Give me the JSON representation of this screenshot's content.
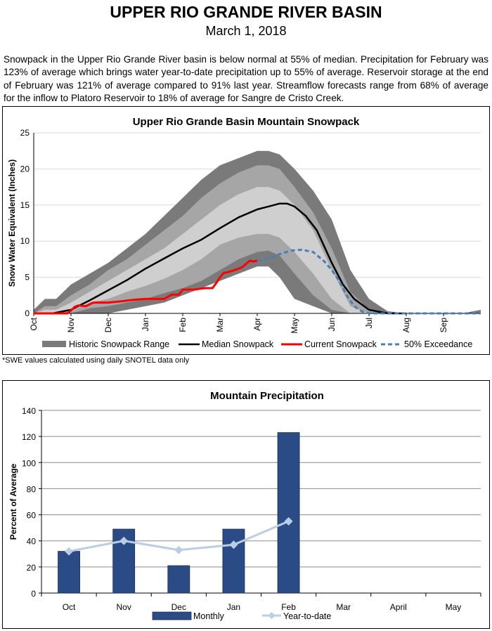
{
  "header": {
    "title": "UPPER RIO GRANDE RIVER BASIN",
    "date": "March 1, 2018",
    "summary": "Snowpack in the Upper Rio Grande River basin is below normal at 55% of median. Precipitation for February was 123% of average which brings water year-to-date precipitation up to 55% of average. Reservoir storage at the end of February was 121% of average compared to 91% last year. Streamflow forecasts range from 68% of average for the inflow to Platoro Reservoir to 18% of average for Sangre de Cristo Creek."
  },
  "footnote": "*SWE values calculated using daily SNOTEL data only",
  "colors": {
    "range_dark": "#7a7a7a",
    "range_mid": "#a6a6a6",
    "range_light": "#cfcfcf",
    "median": "#000000",
    "current": "#ff0000",
    "exceedance": "#4a7ebb",
    "bar": "#2a4b86",
    "ytd": "#b9cde5"
  },
  "chart_data": [
    {
      "type": "area",
      "title": "Upper Rio Grande Basin Mountain Snowpack",
      "ylabel": "Snow Water Equivalent (Inches)",
      "xlabel": "",
      "ylim": [
        0,
        25
      ],
      "yticks": [
        0,
        5,
        10,
        15,
        20,
        25
      ],
      "xticks": [
        "Oct",
        "Nov",
        "Dec",
        "Jan",
        "Feb",
        "Mar",
        "Apr",
        "May",
        "Jun",
        "Jul",
        "Aug",
        "Sep"
      ],
      "x_unit": "month index from Oct 1 (0 = Oct 1, 12 = Sep 30)",
      "legend": [
        "Historic Snowpack Range",
        "Median Snowpack",
        "Current Snowpack",
        "50% Exceedance"
      ],
      "legend_position": "bottom",
      "historic_range": {
        "x": [
          0,
          0.3,
          0.6,
          1,
          1.5,
          2,
          2.5,
          3,
          3.5,
          4,
          4.5,
          5,
          5.5,
          6,
          6.3,
          6.6,
          7,
          7.5,
          8,
          8.5,
          9,
          9.5,
          10,
          10.5,
          11,
          11.5,
          12
        ],
        "max": [
          0.5,
          2,
          2,
          4,
          5.5,
          7,
          9,
          11,
          13.5,
          16,
          18.5,
          20.5,
          21.5,
          22.5,
          22.5,
          22,
          20,
          17,
          13,
          6,
          2,
          0.3,
          0,
          0,
          0,
          0,
          0.5
        ],
        "p90": [
          0,
          1,
          1,
          2.5,
          4,
          6,
          7.5,
          9.5,
          11.5,
          13.5,
          16,
          18,
          19.5,
          20.5,
          20.5,
          20,
          17.5,
          14,
          9,
          3,
          0.5,
          0,
          0,
          0,
          0,
          0,
          0
        ],
        "p70": [
          0,
          0.5,
          0.5,
          1.5,
          3,
          4.5,
          6,
          7.5,
          9,
          11,
          13,
          15,
          16.5,
          17.5,
          17.5,
          17,
          15,
          11.5,
          6,
          1,
          0,
          0,
          0,
          0,
          0,
          0,
          0
        ],
        "p30": [
          0,
          0,
          0,
          0.3,
          1.5,
          2,
          3,
          3.8,
          4.8,
          6,
          7.5,
          9.5,
          10.5,
          11,
          11,
          10.5,
          8.5,
          5.5,
          2,
          0,
          0,
          0,
          0,
          0,
          0,
          0,
          0
        ],
        "p10": [
          0,
          0,
          0,
          0,
          0.7,
          1,
          1.5,
          2,
          2.8,
          3.5,
          4.5,
          6,
          7.5,
          8.5,
          8.7,
          8,
          5.5,
          2.5,
          0.5,
          0,
          0,
          0,
          0,
          0,
          0,
          0,
          0
        ],
        "min": [
          0,
          0,
          0,
          0,
          0,
          0,
          0.5,
          1,
          1.5,
          2.5,
          3.5,
          4.5,
          5.5,
          6.5,
          6.5,
          5,
          2,
          1,
          0,
          0,
          0,
          0,
          0,
          0,
          0,
          0,
          0
        ]
      },
      "series": [
        {
          "name": "Median Snowpack",
          "x": [
            0,
            0.5,
            1,
            1.5,
            2,
            2.5,
            3,
            3.5,
            4,
            4.5,
            5,
            5.5,
            6,
            6.3,
            6.6,
            6.8,
            7,
            7.3,
            7.6,
            8,
            8.3,
            8.6,
            9,
            9.5,
            10
          ],
          "values": [
            0,
            0,
            0.5,
            1.8,
            3.2,
            4.6,
            6.2,
            7.6,
            9,
            10.2,
            11.8,
            13.3,
            14.4,
            14.8,
            15.2,
            15.2,
            14.8,
            13.5,
            11.5,
            7,
            4,
            2,
            0.5,
            0,
            0
          ]
        },
        {
          "name": "Current Snowpack",
          "x": [
            0,
            0.9,
            1,
            1.1,
            1.2,
            1.4,
            1.6,
            2,
            2.4,
            2.7,
            3,
            3.2,
            3.5,
            3.7,
            3.9,
            4,
            4.3,
            4.6,
            4.8,
            4.9,
            5,
            5.1,
            5.2,
            5.4,
            5.6,
            5.8,
            5.9,
            6
          ],
          "values": [
            0,
            0,
            0.4,
            0.9,
            1.1,
            1,
            1.5,
            1.5,
            1.7,
            1.9,
            2,
            2,
            2,
            2.6,
            2.6,
            3.3,
            3.3,
            3.5,
            3.5,
            4.2,
            5,
            5.6,
            5.7,
            6,
            6.4,
            7.3,
            7.2,
            7.3
          ]
        },
        {
          "name": "50% Exceedance",
          "x": [
            6,
            6.3,
            6.6,
            6.9,
            7.2,
            7.5,
            7.8,
            8,
            8.2,
            8.4,
            8.6,
            8.8,
            9,
            9.5,
            10,
            11,
            12
          ],
          "values": [
            7.3,
            7.6,
            8.2,
            8.7,
            8.8,
            8.5,
            7.2,
            6,
            4.5,
            2.5,
            1,
            0.3,
            0,
            0,
            0,
            0,
            0
          ]
        }
      ]
    },
    {
      "type": "bar",
      "title": "Mountain Precipitation",
      "ylabel": "Percent of Average",
      "xlabel": "",
      "ylim": [
        0,
        140
      ],
      "yticks": [
        0,
        20,
        40,
        60,
        80,
        100,
        120,
        140
      ],
      "categories": [
        "Oct",
        "Nov",
        "Dec",
        "Jan",
        "Feb",
        "Mar",
        "April",
        "May"
      ],
      "legend_position": "bottom",
      "series": [
        {
          "name": "Monthly",
          "type": "bar",
          "values": [
            32,
            49,
            21,
            49,
            123,
            null,
            null,
            null
          ]
        },
        {
          "name": "Year-to-date",
          "type": "line",
          "values": [
            32,
            40,
            33,
            37,
            55,
            null,
            null,
            null
          ]
        }
      ]
    }
  ]
}
